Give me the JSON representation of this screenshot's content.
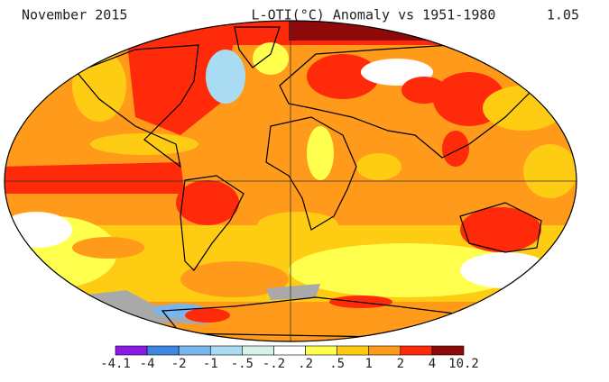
{
  "header": {
    "date": "November 2015",
    "title": "L-OTI(°C) Anomaly vs 1951-1980",
    "global_mean": "1.05"
  },
  "legend": {
    "labels": [
      "-4.1",
      "-4",
      "-2",
      "-1",
      "-.5",
      "-.2",
      ".2",
      ".5",
      "1",
      "2",
      "4",
      "10.2"
    ],
    "colors": [
      "#8b1ae6",
      "#3f86e0",
      "#7ab6ee",
      "#a9dcf3",
      "#d6f2e8",
      "#ffffff",
      "#ffff4d",
      "#ffcc14",
      "#ff9a1a",
      "#ff2a0a",
      "#8e0a0a"
    ]
  }
}
